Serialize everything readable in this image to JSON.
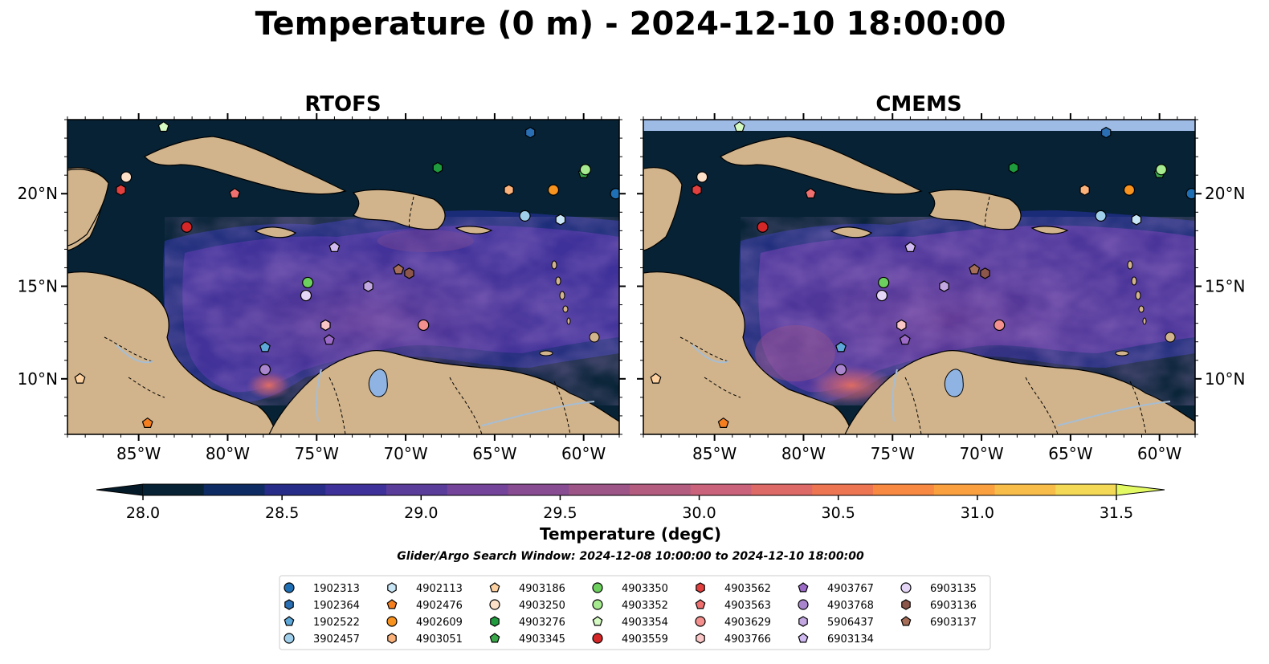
{
  "figure": {
    "title": "Temperature (0 m) - 2024-12-10 18:00:00",
    "search_window": "Glider/Argo Search Window: 2024-12-08 10:00:00 to 2024-12-10 18:00:00"
  },
  "colors": {
    "ocean_dark": "#062234",
    "land": "#d2b48c",
    "rivers": "#a7bdd2",
    "lake": "#8fb4e3",
    "no_data_band": "#9dbbe5"
  },
  "map_extent": {
    "lon": [
      -89,
      -58
    ],
    "lat": [
      7,
      24
    ]
  },
  "panels": [
    {
      "id": "rtofs",
      "title": "RTOFS"
    },
    {
      "id": "cmems",
      "title": "CMEMS"
    }
  ],
  "axes": {
    "lon_ticks": [
      {
        "value": -85,
        "label": "85°W"
      },
      {
        "value": -80,
        "label": "80°W"
      },
      {
        "value": -75,
        "label": "75°W"
      },
      {
        "value": -70,
        "label": "70°W"
      },
      {
        "value": -65,
        "label": "65°W"
      },
      {
        "value": -60,
        "label": "60°W"
      }
    ],
    "lat_ticks": [
      {
        "value": 20,
        "label": "20°N"
      },
      {
        "value": 15,
        "label": "15°N"
      },
      {
        "value": 10,
        "label": "10°N"
      }
    ]
  },
  "colorbar": {
    "label": "Temperature (degC)",
    "min": 28.0,
    "max": 31.5,
    "step": 0.25,
    "tick_labels": [
      "28.0",
      "28.5",
      "29.0",
      "29.5",
      "30.0",
      "30.5",
      "31.0",
      "31.5"
    ],
    "colors": [
      "#062234",
      "#0e2b64",
      "#272c88",
      "#3e3199",
      "#5a3c9b",
      "#73449a",
      "#874c91",
      "#9d5487",
      "#b35c7f",
      "#c9627a",
      "#de6a67",
      "#ee7552",
      "#f78943",
      "#fba03f",
      "#f8bc48",
      "#f3d955"
    ],
    "under_color": "#041a29",
    "over_color": "#e4fa64"
  },
  "markers": [
    {
      "id": "1902313",
      "shape": "circle",
      "color": "#1f6fb4",
      "lon": -58.2,
      "lat": 20.0
    },
    {
      "id": "1902364",
      "shape": "hexagon",
      "color": "#2a6fb3",
      "lon": -63.0,
      "lat": 23.3
    },
    {
      "id": "1902522",
      "shape": "pentagon",
      "color": "#5ea8d9",
      "lon": -77.9,
      "lat": 11.7
    },
    {
      "id": "3902457",
      "shape": "circle",
      "color": "#9fcfea",
      "lon": -63.3,
      "lat": 18.8
    },
    {
      "id": "4902113",
      "shape": "hexagon",
      "color": "#c9e6f7",
      "lon": -61.3,
      "lat": 18.6
    },
    {
      "id": "4902476",
      "shape": "pentagon",
      "color": "#f57f1f",
      "lon": -84.5,
      "lat": 7.6
    },
    {
      "id": "4902609",
      "shape": "circle",
      "color": "#f7931e",
      "lon": -61.7,
      "lat": 20.2
    },
    {
      "id": "4903051",
      "shape": "hexagon",
      "color": "#fbb27b",
      "lon": -64.2,
      "lat": 20.2
    },
    {
      "id": "4903186",
      "shape": "pentagon",
      "color": "#fdd1a0",
      "lon": -88.3,
      "lat": 10.0
    },
    {
      "id": "4903250",
      "shape": "circle",
      "color": "#fde0c8",
      "lon": -85.7,
      "lat": 20.9
    },
    {
      "id": "4903276",
      "shape": "hexagon",
      "color": "#1f9a3c",
      "lon": -68.2,
      "lat": 21.4
    },
    {
      "id": "4903345",
      "shape": "pentagon",
      "color": "#3aa84a",
      "lon": -60.0,
      "lat": 21.1
    },
    {
      "id": "4903350",
      "shape": "circle",
      "color": "#6ccf5e",
      "lon": -75.5,
      "lat": 15.2
    },
    {
      "id": "4903352",
      "shape": "circle",
      "color": "#a6ea8f",
      "lon": -59.9,
      "lat": 21.3
    },
    {
      "id": "4903354",
      "shape": "pentagon",
      "color": "#d5fbc2",
      "lon": -83.6,
      "lat": 23.6
    },
    {
      "id": "4903559",
      "shape": "circle",
      "color": "#d62728",
      "lon": -82.3,
      "lat": 18.2
    },
    {
      "id": "4903562",
      "shape": "hexagon",
      "color": "#e2403f",
      "lon": -86.0,
      "lat": 20.2
    },
    {
      "id": "4903563",
      "shape": "pentagon",
      "color": "#f07070",
      "lon": -79.6,
      "lat": 20.0
    },
    {
      "id": "4903629",
      "shape": "circle",
      "color": "#f4908d",
      "lon": -69.0,
      "lat": 12.9
    },
    {
      "id": "4903766",
      "shape": "hexagon",
      "color": "#fbc6c6",
      "lon": -74.5,
      "lat": 12.9
    },
    {
      "id": "4903767",
      "shape": "pentagon",
      "color": "#9c6bc7",
      "lon": -74.3,
      "lat": 12.1
    },
    {
      "id": "4903768",
      "shape": "circle",
      "color": "#a985ce",
      "lon": -77.9,
      "lat": 10.5
    },
    {
      "id": "5906437",
      "shape": "hexagon",
      "color": "#c3a7e1",
      "lon": -72.1,
      "lat": 15.0
    },
    {
      "id": "6903134",
      "shape": "pentagon",
      "color": "#cfb9f0",
      "lon": -74.0,
      "lat": 17.1
    },
    {
      "id": "6903135",
      "shape": "circle",
      "color": "#e5d6f7",
      "lon": -75.6,
      "lat": 14.5
    },
    {
      "id": "6903136",
      "shape": "hexagon",
      "color": "#8c564b",
      "lon": -69.8,
      "lat": 15.7
    },
    {
      "id": "6903137",
      "shape": "pentagon",
      "color": "#a66e59",
      "lon": -70.4,
      "lat": 15.9
    }
  ]
}
